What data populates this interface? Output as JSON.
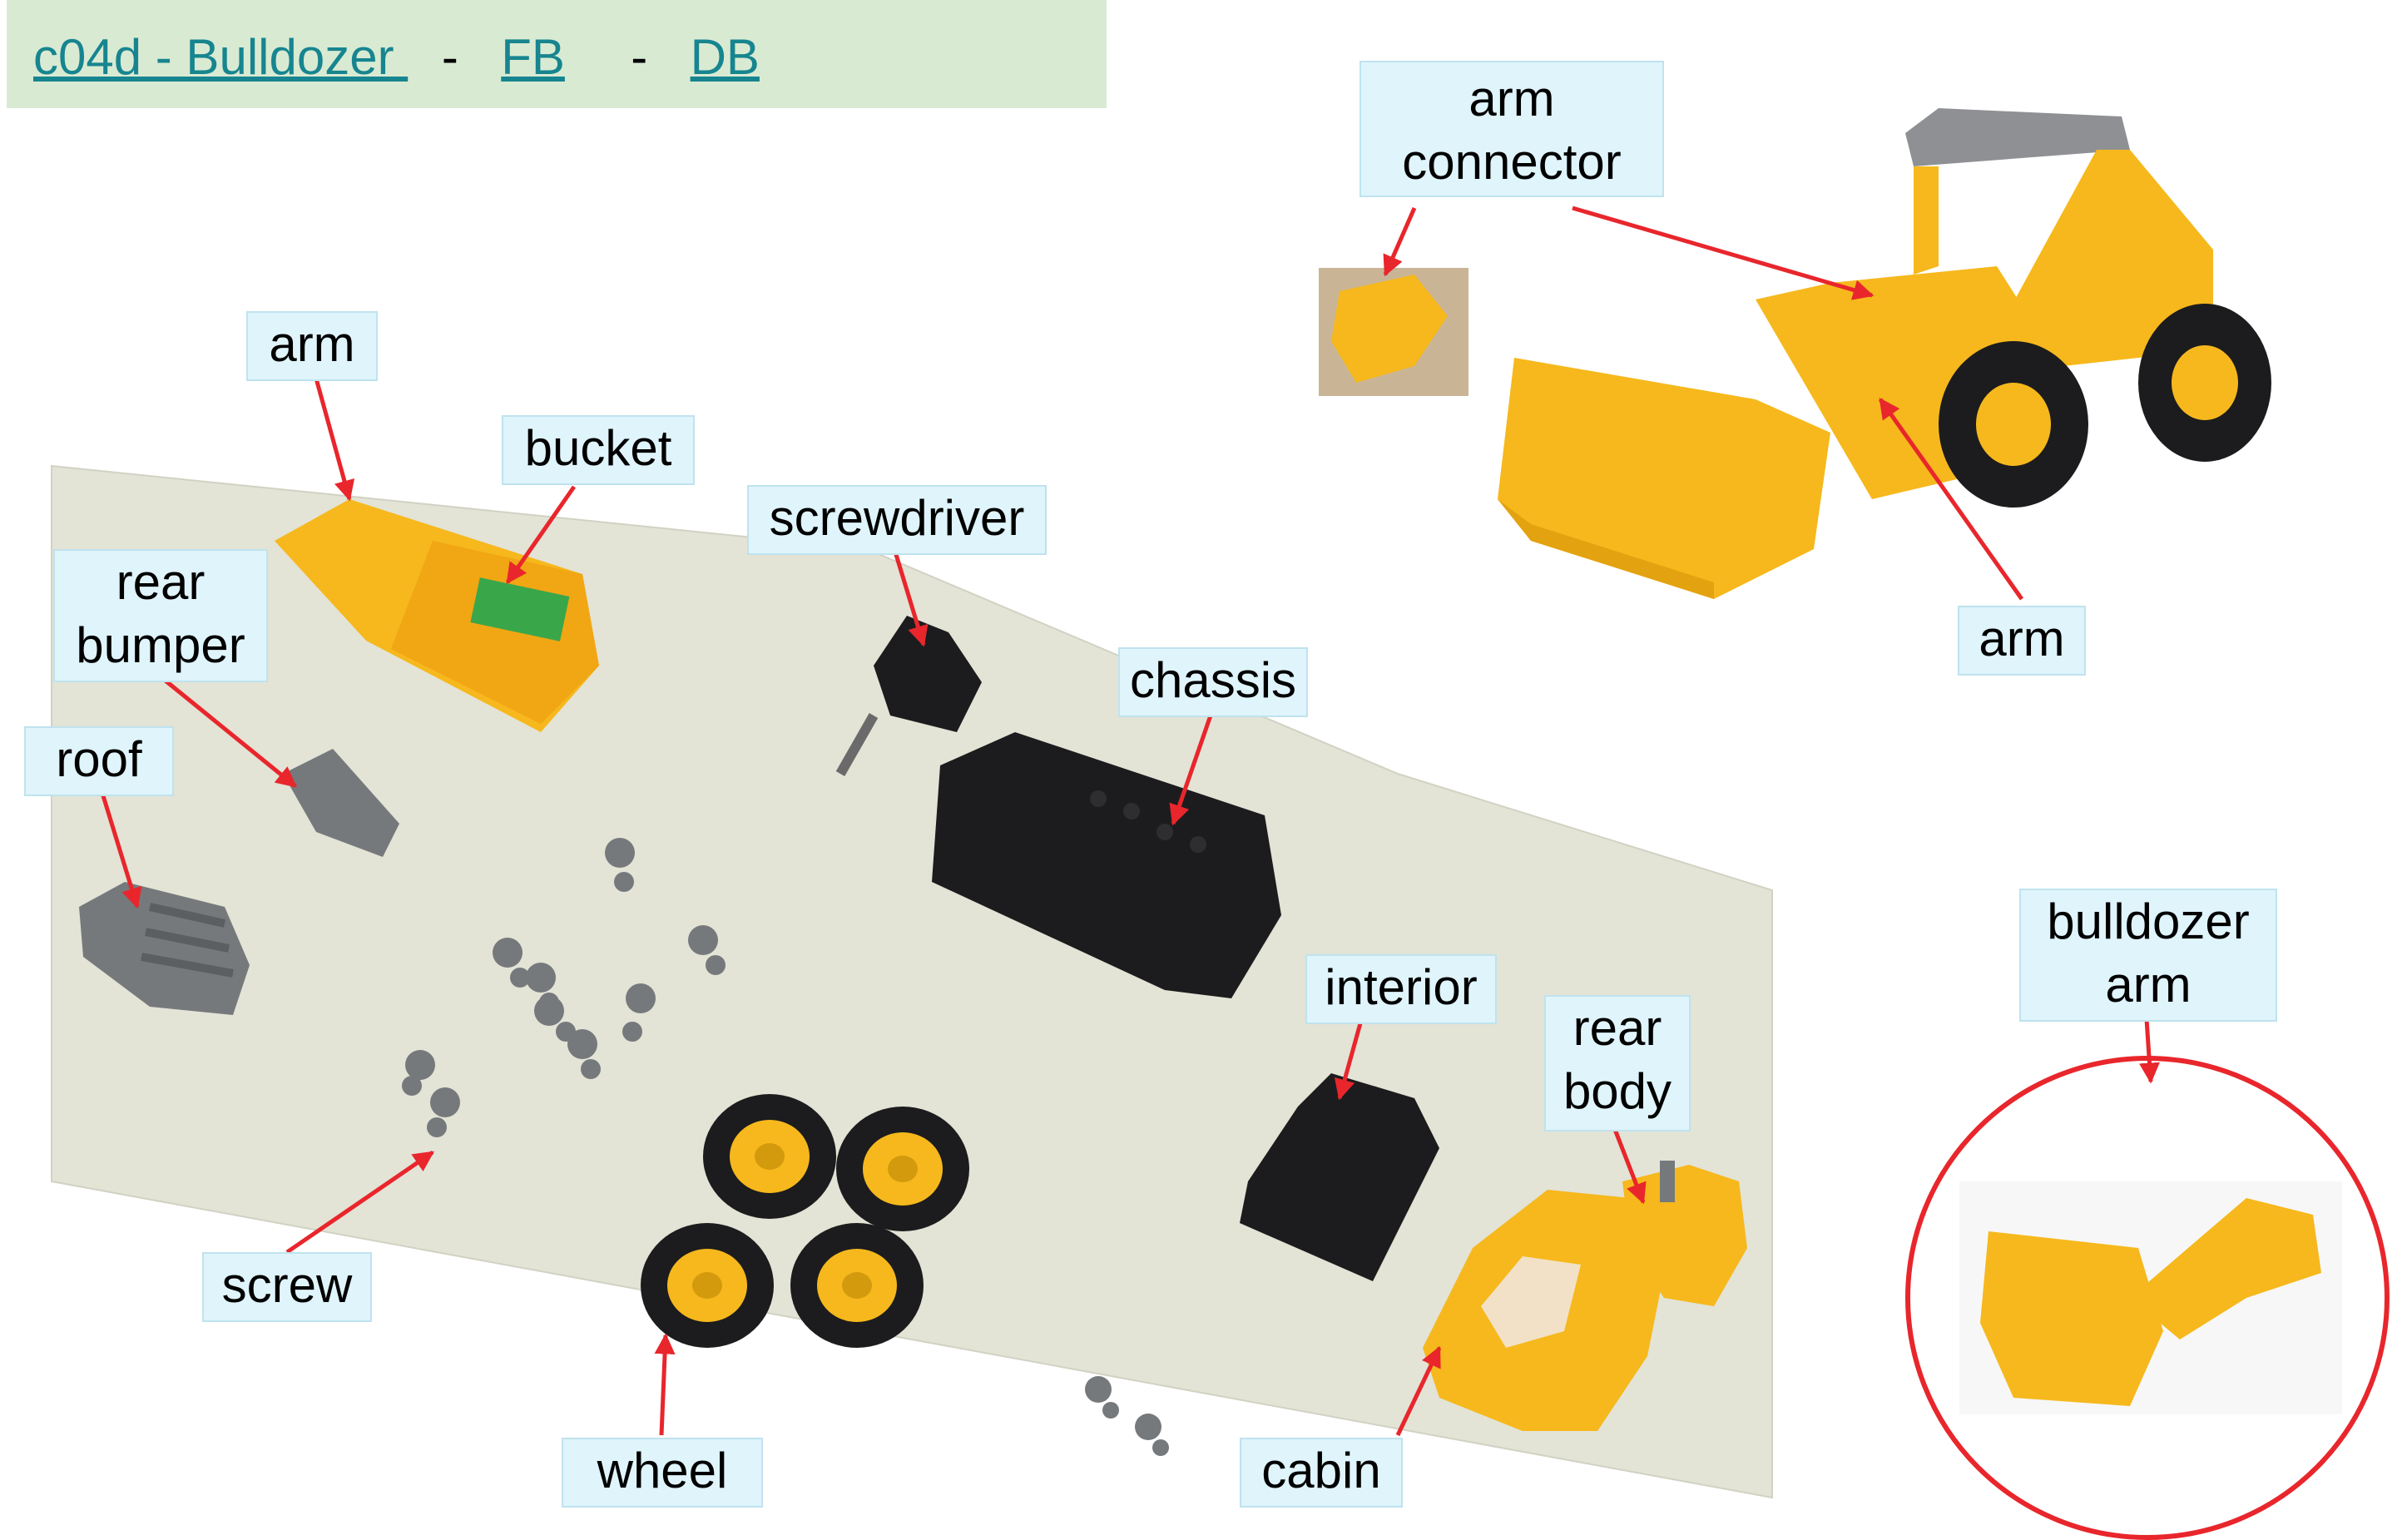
{
  "header": {
    "title_link": "c04d - Bulldozer ",
    "sep1": "-",
    "fb_link": "FB",
    "sep2": "-",
    "db_link": "DB"
  },
  "labels": {
    "arm_connector": "arm\nconnector",
    "arm_top": "arm",
    "arm_right": "arm",
    "bucket": "bucket",
    "rear_bumper": "rear\nbumper",
    "roof": "roof",
    "screwdriver": "screwdriver",
    "chassis": "chassis",
    "interior": "interior",
    "rear_body": "rear\nbody",
    "screw": "screw",
    "wheel": "wheel",
    "cabin": "cabin",
    "bulldozer_arm": "bulldozer\narm"
  },
  "colors": {
    "header_bg": "#d9ead3",
    "link": "#17858f",
    "label_bg": "#dff4fb",
    "arrow": "#e8262c",
    "part_yellow": "#f6b81c",
    "part_black": "#1c1c1e",
    "part_gray": "#76797c",
    "table": "#e3e3d6"
  }
}
